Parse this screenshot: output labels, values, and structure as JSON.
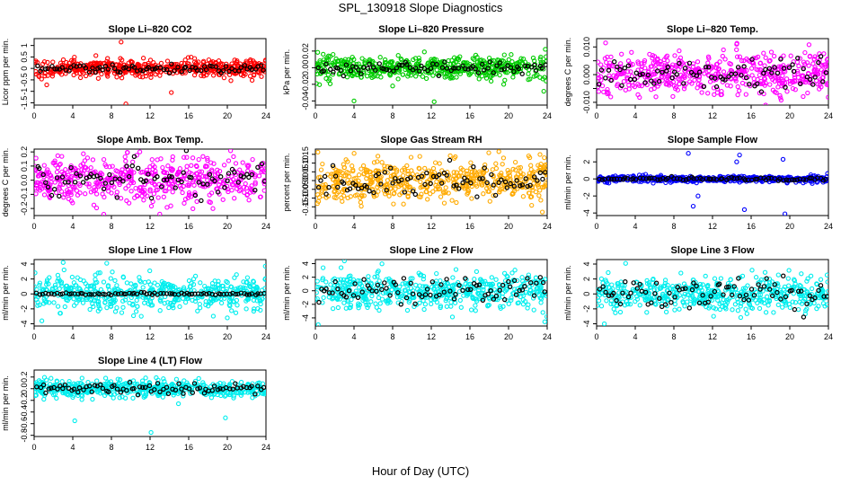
{
  "figure_title": "SPL_130918  Slope Diagnostics",
  "x_caption": "Hour of Day (UTC)",
  "colors": {
    "overlay": "#000000",
    "frame": "#000000"
  },
  "chart_data": [
    {
      "type": "scatter",
      "title": "Slope Li–820 CO2",
      "ylabel": "Licor ppm per min.",
      "xlim": [
        0,
        24
      ],
      "xticks": [
        0,
        4,
        8,
        12,
        16,
        20,
        24
      ],
      "ylim": [
        -1.6,
        1.3
      ],
      "yticks": [
        -1.5,
        -1,
        -0.5,
        0,
        0.5,
        1
      ],
      "yticklabels": [
        "-1.5",
        "-1",
        "-0.5",
        "0",
        "0.5",
        "1"
      ],
      "color": "#ff0000",
      "spread": 0.18,
      "overlay_spread": 0.09,
      "outliers": [
        [
          9,
          1.15
        ],
        [
          9.5,
          -1.55
        ],
        [
          14.2,
          -1.05
        ],
        [
          1.3,
          -0.72
        ]
      ],
      "seed": 1
    },
    {
      "type": "scatter",
      "title": "Slope Li–820 Pressure",
      "ylabel": "kPa per min.",
      "xlim": [
        0,
        24
      ],
      "xticks": [
        0,
        4,
        8,
        12,
        16,
        20,
        24
      ],
      "ylim": [
        -0.045,
        0.035
      ],
      "yticks": [
        -0.04,
        -0.02,
        0,
        0.02
      ],
      "yticklabels": [
        "-0.04",
        "-0.02",
        "0.00",
        "0.02"
      ],
      "color": "#00cc00",
      "spread": 0.007,
      "overlay_spread": 0.004,
      "outliers": [
        [
          4,
          -0.04
        ],
        [
          12.3,
          -0.041
        ],
        [
          19.5,
          -0.02
        ],
        [
          8,
          -0.022
        ],
        [
          23.9,
          -0.016
        ]
      ],
      "seed": 2
    },
    {
      "type": "scatter",
      "title": "Slope Li–820 Temp.",
      "ylabel": "degrees C per min.",
      "xlim": [
        0,
        24
      ],
      "xticks": [
        0,
        4,
        8,
        12,
        16,
        20,
        24
      ],
      "ylim": [
        -0.011,
        0.013
      ],
      "yticks": [
        -0.01,
        -0.005,
        0,
        0.005,
        0.01
      ],
      "yticklabels": [
        "-0.010",
        "",
        "0.000",
        "",
        "0.010"
      ],
      "color": "#ff00ff",
      "spread": 0.004,
      "overlay_spread": 0.003,
      "outliers": [
        [
          14.5,
          0.011
        ],
        [
          17.5,
          -0.011
        ]
      ],
      "seed": 3
    },
    {
      "type": "scatter",
      "title": "Slope Amb. Box Temp.",
      "ylabel": "degrees C per min.",
      "xlim": [
        0,
        24
      ],
      "xticks": [
        0,
        4,
        8,
        12,
        16,
        20,
        24
      ],
      "ylim": [
        -0.25,
        0.22
      ],
      "yticks": [
        -0.2,
        -0.1,
        0,
        0.1,
        0.2
      ],
      "yticklabels": [
        "-0.2",
        "-0.1",
        "0.0",
        "0.1",
        "0.2"
      ],
      "color": "#ff00ff",
      "spread": 0.08,
      "overlay_spread": 0.06,
      "outliers": [
        [
          13,
          -0.24
        ]
      ],
      "seed": 4
    },
    {
      "type": "scatter",
      "title": "Slope Gas Stream RH",
      "ylabel": "percent per min.",
      "xlim": [
        0,
        24
      ],
      "xticks": [
        0,
        4,
        8,
        12,
        16,
        20,
        24
      ],
      "ylim": [
        -0.2,
        0.18
      ],
      "yticks": [
        -0.15,
        -0.1,
        -0.05,
        0,
        0.05,
        0.1,
        0.15
      ],
      "yticklabels": [
        "-0.15",
        "-0.10",
        "-0.05",
        "0.00",
        "0.05",
        "0.10",
        "0.15"
      ],
      "color": "#ffaa00",
      "spread": 0.06,
      "overlay_spread": 0.04,
      "outliers": [
        [
          23.5,
          -0.18
        ]
      ],
      "seed": 5
    },
    {
      "type": "scatter",
      "title": "Slope Sample Flow",
      "ylabel": "ml/min per min.",
      "xlim": [
        0,
        24
      ],
      "xticks": [
        0,
        4,
        8,
        12,
        16,
        20,
        24
      ],
      "ylim": [
        -4.3,
        3.5
      ],
      "yticks": [
        -4,
        -2,
        0,
        2
      ],
      "yticklabels": [
        "-4",
        "-2",
        "0",
        "2"
      ],
      "color": "#0000ff",
      "spread": 0.18,
      "overlay_spread": 0.1,
      "outliers": [
        [
          9.5,
          3.0
        ],
        [
          10,
          -3.2
        ],
        [
          14.8,
          2.8
        ],
        [
          15.3,
          -3.6
        ],
        [
          19.3,
          2.3
        ],
        [
          19.5,
          -4.1
        ],
        [
          10.5,
          -2.0
        ],
        [
          14.5,
          2.0
        ]
      ],
      "seed": 6
    },
    {
      "type": "scatter",
      "title": "Slope Line 1 Flow",
      "ylabel": "ml/min per min.",
      "xlim": [
        0,
        24
      ],
      "xticks": [
        0,
        4,
        8,
        12,
        16,
        20,
        24
      ],
      "ylim": [
        -4.3,
        4.6
      ],
      "yticks": [
        -4,
        -2,
        0,
        2,
        4
      ],
      "yticklabels": [
        "-4",
        "-2",
        "0",
        "2",
        "4"
      ],
      "color": "#00eeee",
      "spread": 1.1,
      "overlay_spread": 0.08,
      "outliers": [
        [
          3,
          4.2
        ],
        [
          0.8,
          -3.6
        ],
        [
          20,
          -3.2
        ]
      ],
      "seed": 7
    },
    {
      "type": "scatter",
      "title": "Slope Line 2 Flow",
      "ylabel": "ml/min per min.",
      "xlim": [
        0,
        24
      ],
      "xticks": [
        0,
        4,
        8,
        12,
        16,
        20,
        24
      ],
      "ylim": [
        -5.2,
        4.6
      ],
      "yticks": [
        -4,
        -2,
        0,
        2,
        4
      ],
      "yticklabels": [
        "-4",
        "-2",
        "0",
        "2",
        "4"
      ],
      "color": "#00eeee",
      "spread": 1.3,
      "overlay_spread": 1.1,
      "outliers": [
        [
          0.3,
          -5.0
        ],
        [
          0.8,
          3.4
        ],
        [
          3,
          4.4
        ]
      ],
      "seed": 8
    },
    {
      "type": "scatter",
      "title": "Slope Line 3 Flow",
      "ylabel": "ml/min per min.",
      "xlim": [
        0,
        24
      ],
      "xticks": [
        0,
        4,
        8,
        12,
        16,
        20,
        24
      ],
      "ylim": [
        -4.3,
        4.6
      ],
      "yticks": [
        -4,
        -2,
        0,
        2,
        4
      ],
      "yticklabels": [
        "-4",
        "-2",
        "0",
        "2",
        "4"
      ],
      "color": "#00eeee",
      "spread": 1.1,
      "overlay_spread": 0.9,
      "outliers": [
        [
          3,
          4.1
        ],
        [
          0.8,
          -4.0
        ]
      ],
      "seed": 9
    },
    {
      "type": "scatter",
      "title": "Slope Line 4 (LT) Flow",
      "ylabel": "ml/min per min.",
      "xlim": [
        0,
        24
      ],
      "xticks": [
        0,
        4,
        8,
        12,
        16,
        20,
        24
      ],
      "ylim": [
        -0.82,
        0.32
      ],
      "yticks": [
        -0.8,
        -0.6,
        -0.4,
        -0.2,
        0,
        0.2
      ],
      "yticklabels": [
        "-0.8",
        "-0.6",
        "-0.4",
        "-0.2",
        "0.0",
        "0.2"
      ],
      "color": "#00eeee",
      "spread": 0.07,
      "overlay_spread": 0.05,
      "outliers": [
        [
          4.2,
          -0.55
        ],
        [
          12.1,
          -0.75
        ],
        [
          19.8,
          -0.5
        ],
        [
          1,
          -0.18
        ]
      ],
      "seed": 10
    }
  ]
}
